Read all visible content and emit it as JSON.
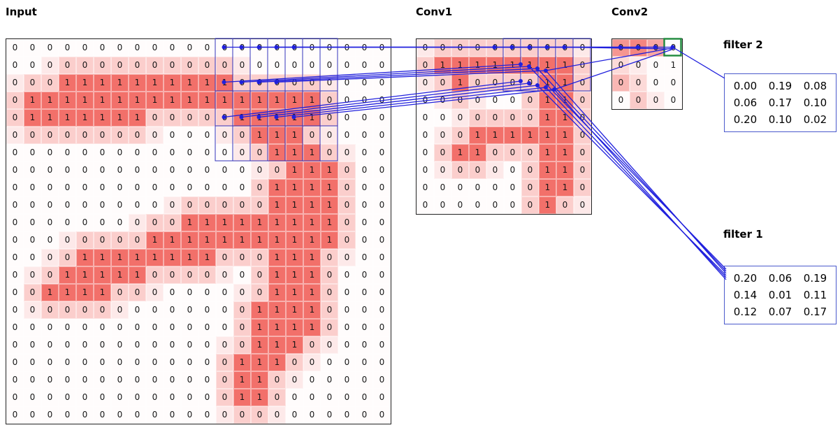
{
  "titles": {
    "input": "Input",
    "conv1": "Conv1",
    "conv2": "Conv2"
  },
  "filters": {
    "f2": {
      "label": "filter 2",
      "values": [
        [
          "0.00",
          "0.19",
          "0.08"
        ],
        [
          "0.06",
          "0.17",
          "0.10"
        ],
        [
          "0.20",
          "0.10",
          "0.02"
        ]
      ]
    },
    "f1": {
      "label": "filter 1",
      "values": [
        [
          "0.20",
          "0.06",
          "0.19"
        ],
        [
          "0.14",
          "0.01",
          "0.11"
        ],
        [
          "0.12",
          "0.07",
          "0.17"
        ]
      ]
    }
  },
  "grids": {
    "input": {
      "rows": [
        "0000000000000000000000",
        "0000000000000000000000",
        "0001111111111000000000",
        "0111111111111111110000",
        "0111111100000111110000",
        "0000000000000011100000",
        "0000000000000001110000",
        "0000000000000000111000",
        "0000000000000001111000",
        "0000000000000001111000",
        "0000000000111111111000",
        "0000000011111111111000",
        "0000111111110001110000",
        "0001111100000001110000",
        "0011110000000001110000",
        "0000000000000011110000",
        "0000000000000011110000",
        "0000000000000011100000",
        "0000000000000111000000",
        "0000000000000110000000",
        "0000000000000110000000",
        "0000000000000000000000"
      ]
    },
    "conv1": {
      "rows": [
        "0000000000",
        "0111111110",
        "0010000110",
        "0000000110",
        "0000000110",
        "0001111110",
        "0011000110",
        "0000000110",
        "0000000110",
        "0000000100"
      ]
    },
    "conv2": {
      "rows": [
        "0000",
        "0001",
        "0000",
        "0000"
      ],
      "shades": [
        [
          6,
          7,
          5,
          0
        ],
        [
          2,
          1,
          0,
          0
        ],
        [
          4,
          2,
          0,
          0
        ],
        [
          0,
          3,
          1,
          0
        ]
      ]
    }
  },
  "colors": {
    "cell_red": "#ee4840",
    "line_blue": "#2020dd",
    "highlight_green": "#1f8a3d",
    "grid_border": "#222222",
    "filter_border": "#4a5acc"
  }
}
